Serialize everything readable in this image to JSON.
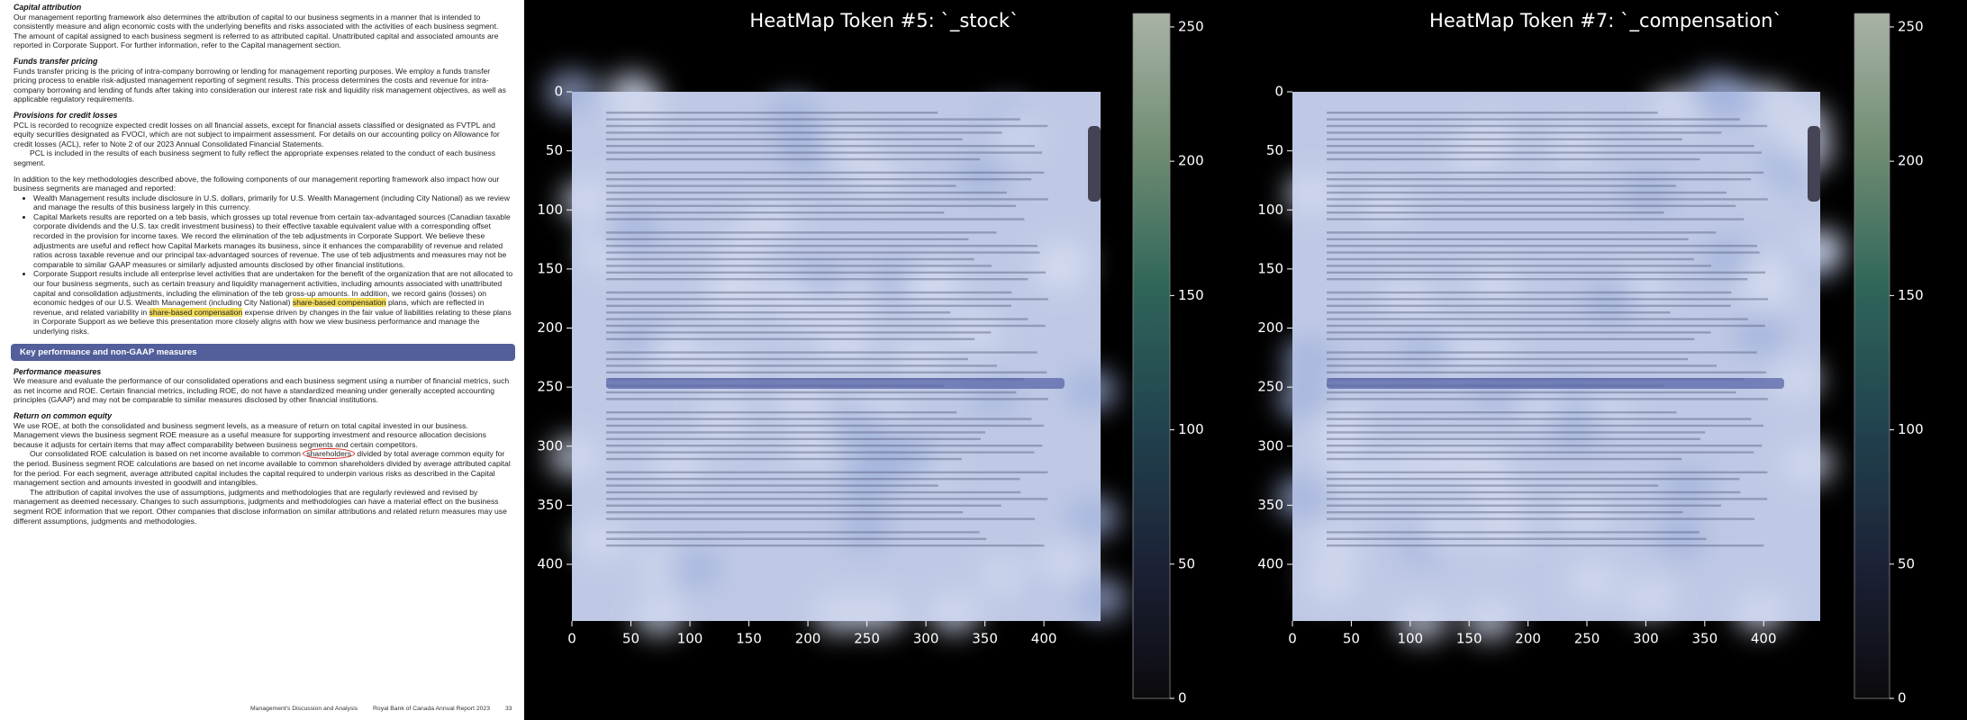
{
  "document": {
    "capital_attribution": {
      "heading": "Capital attribution",
      "text": "Our management reporting framework also determines the attribution of capital to our business segments in a manner that is intended to consistently measure and align economic costs with the underlying benefits and risks associated with the activities of each business segment. The amount of capital assigned to each business segment is referred to as attributed capital. Unattributed capital and associated amounts are reported in Corporate Support. For further information, refer to the Capital management section."
    },
    "funds_transfer_pricing": {
      "heading": "Funds transfer pricing",
      "text": "Funds transfer pricing is the pricing of intra-company borrowing or lending for management reporting purposes. We employ a funds transfer pricing process to enable risk-adjusted management reporting of segment results. This process determines the costs and revenue for intra-company borrowing and lending of funds after taking into consideration our interest rate risk and liquidity risk management objectives, as well as applicable regulatory requirements."
    },
    "provisions": {
      "heading": "Provisions for credit losses",
      "paragraphs": [
        "PCL is recorded to recognize expected credit losses on all financial assets, except for financial assets classified or designated as FVTPL and equity securities designated as FVOCI, which are not subject to impairment assessment. For details on our accounting policy on Allowance for credit losses (ACL), refer to Note 2 of our 2023 Annual Consolidated Financial Statements.",
        "PCL is included in the results of each business segment to fully reflect the appropriate expenses related to the conduct of each business segment."
      ]
    },
    "components": {
      "intro": "In addition to the key methodologies described above, the following components of our management reporting framework also impact how our business segments are managed and reported:",
      "bullets": [
        "Wealth Management results include disclosure in U.S. dollars, primarily for U.S. Wealth Management (including City National) as we review and manage the results of this business largely in this currency.",
        "Capital Markets results are reported on a teb basis, which grosses up total revenue from certain tax-advantaged sources (Canadian taxable corporate dividends and the U.S. tax credit investment business) to their effective taxable equivalent value with a corresponding offset recorded in the provision for income taxes. We record the elimination of the teb adjustments in Corporate Support. We believe these adjustments are useful and reflect how Capital Markets manages its business, since it enhances the comparability of revenue and related ratios across taxable revenue and our principal tax-advantaged sources of revenue. The use of teb adjustments and measures may not be comparable to similar GAAP measures or similarly adjusted amounts disclosed by other financial institutions.",
        [
          "Corporate Support results include all enterprise level activities that are undertaken for the benefit of the organization that are not allocated to our four business segments, such as certain treasury and liquidity management activities, including amounts associated with unattributed capital and consolidation adjustments, including the elimination of the teb gross-up amounts. In addition, we record gains (losses) on economic hedges of our U.S. Wealth Management (including City National) ",
          "share-based compensation",
          " plans, which are reflected in revenue, and related variability in ",
          "share-based compensation",
          " expense driven by changes in the fair value of liabilities relating to these plans in Corporate Support as we believe this presentation more closely aligns with how we view business performance and manage the underlying risks."
        ]
      ]
    },
    "banner": "Key performance and non-GAAP measures",
    "performance_measures": {
      "heading": "Performance measures",
      "text": "We measure and evaluate the performance of our consolidated operations and each business segment using a number of financial metrics, such as net income and ROE. Certain financial metrics, including ROE, do not have a standardized meaning under generally accepted accounting principles (GAAP) and may not be comparable to similar measures disclosed by other financial institutions."
    },
    "return_on_equity": {
      "heading": "Return on common equity",
      "paragraphs": [
        "We use ROE, at both the consolidated and business segment levels, as a measure of return on total capital invested in our business. Management views the business segment ROE measure as a useful measure for supporting investment and resource allocation decisions because it adjusts for certain items that may affect comparability between business segments and certain competitors.",
        [
          "Our consolidated ROE calculation is based on net income available to common ",
          "shareholders",
          " divided by total average common equity for the period. Business segment ROE calculations are based on net income available to common shareholders divided by average attributed capital for the period. For each segment, average attributed capital includes the capital required to underpin various risks as described in the Capital management section and amounts invested in goodwill and intangibles."
        ],
        "The attribution of capital involves the use of assumptions, judgments and methodologies that are regularly reviewed and revised by management as deemed necessary. Changes to such assumptions, judgments and methodologies can have a material effect on the business segment ROE information that we report. Other companies that disclose information on similar attributions and related return measures may use different assumptions, judgments and methodologies."
      ]
    },
    "footer": {
      "section": "Management's Discussion and Analysis",
      "report": "Royal Bank of Canada Annual Report 2023",
      "page": 33
    }
  },
  "chart_data": [
    {
      "type": "heatmap",
      "title": "HeatMap Token #5: `_stock`",
      "xlim": [
        0,
        448
      ],
      "xticks": [
        0,
        50,
        100,
        150,
        200,
        250,
        300,
        350,
        400
      ],
      "ylim": [
        0,
        448
      ],
      "yticks": [
        0,
        50,
        100,
        150,
        200,
        250,
        300,
        350,
        400
      ],
      "yaxis_inverted": true,
      "clim": [
        0,
        255
      ],
      "cticks": [
        0,
        50,
        100,
        150,
        200,
        250
      ],
      "colormap": [
        "#0c0a0e",
        "#1c2237",
        "#21434f",
        "#2f6559",
        "#6f8c72",
        "#a9b3a6"
      ]
    },
    {
      "type": "heatmap",
      "title": "HeatMap Token #7: `_compensation`",
      "xlim": [
        0,
        448
      ],
      "xticks": [
        0,
        50,
        100,
        150,
        200,
        250,
        300,
        350,
        400
      ],
      "ylim": [
        0,
        448
      ],
      "yticks": [
        0,
        50,
        100,
        150,
        200,
        250,
        300,
        350,
        400
      ],
      "yaxis_inverted": true,
      "clim": [
        0,
        255
      ],
      "cticks": [
        0,
        50,
        100,
        150,
        200,
        250
      ],
      "colormap": [
        "#0c0a0e",
        "#1c2237",
        "#21434f",
        "#2f6559",
        "#6f8c72",
        "#a9b3a6"
      ]
    }
  ]
}
